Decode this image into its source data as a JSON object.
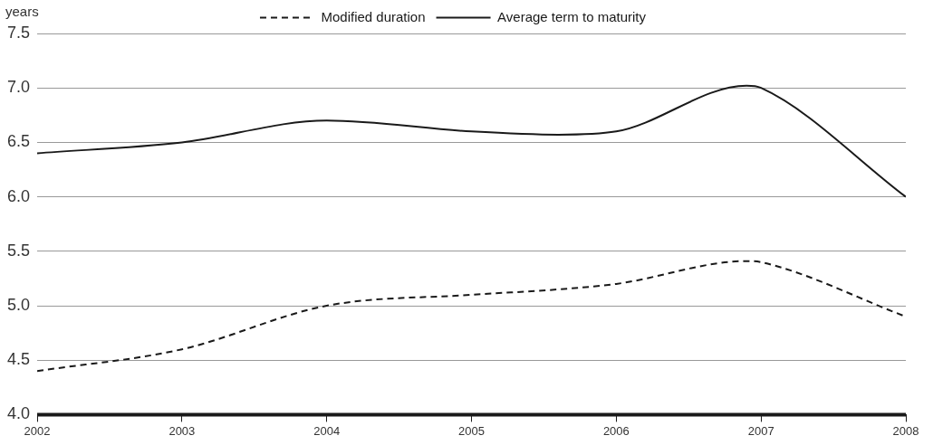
{
  "chart_data": {
    "type": "line",
    "ylabel": "years",
    "xlim": [
      2002,
      2008
    ],
    "xticks": [
      2002,
      2003,
      2004,
      2005,
      2006,
      2007,
      2008
    ],
    "ylim": [
      4.0,
      7.5
    ],
    "yticks": [
      {
        "value": 4.0,
        "label": "4.0"
      },
      {
        "value": 4.5,
        "label": "4.5"
      },
      {
        "value": 5.0,
        "label": "5.0"
      },
      {
        "value": 5.5,
        "label": "5.5"
      },
      {
        "value": 6.0,
        "label": "6.0"
      },
      {
        "value": 6.5,
        "label": "6.5"
      },
      {
        "value": 7.0,
        "label": "7.0"
      },
      {
        "value": 7.5,
        "label": "7.5"
      }
    ],
    "grid": "y",
    "legend": "top",
    "marker": "none",
    "series": [
      {
        "name": "Modified duration",
        "color": "#1a1a1a",
        "line_style": "dashed",
        "x": [
          2002,
          2003,
          2004,
          2005,
          2005.6,
          2006,
          2006.9,
          2007,
          2008
        ],
        "values": [
          4.4,
          4.6,
          5.0,
          5.1,
          5.15,
          5.2,
          5.41,
          5.4,
          4.9
        ]
      },
      {
        "name": "Average term to maturity",
        "color": "#1a1a1a",
        "line_style": "solid",
        "x": [
          2002,
          2003,
          2004,
          2005,
          2005.6,
          2006,
          2006.9,
          2007,
          2008
        ],
        "values": [
          6.4,
          6.5,
          6.7,
          6.6,
          6.57,
          6.6,
          7.02,
          7.0,
          6.0
        ]
      }
    ]
  }
}
